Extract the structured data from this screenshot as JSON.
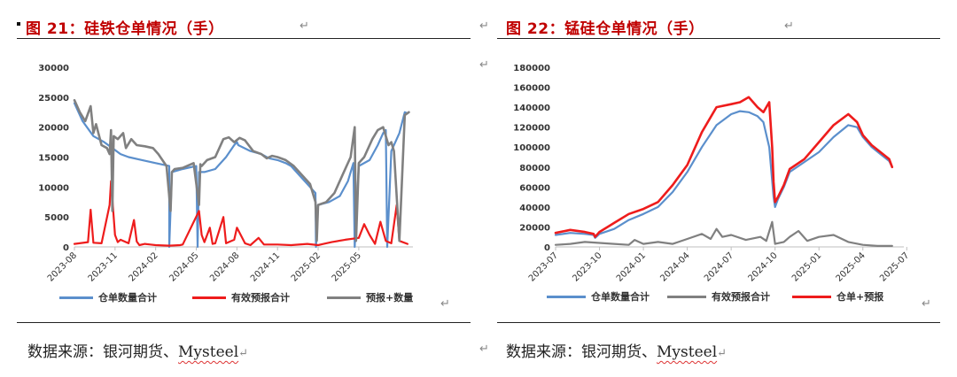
{
  "left": {
    "title": "图 21：硅铁仓单情况（手）",
    "source_prefix": "数据来源：银河期货、",
    "source_brand": "Mysteel",
    "chart_data": {
      "type": "line",
      "title": "",
      "xlabel": "",
      "ylabel": "",
      "ylim": [
        0,
        30000
      ],
      "y_ticks": [
        "0",
        "5000",
        "10000",
        "15000",
        "20000",
        "25000",
        "30000"
      ],
      "x_ticks": [
        "2023-08",
        "2023-11",
        "2024-02",
        "2024-05",
        "2024-08",
        "2024-11",
        "2025-02",
        "2025-05"
      ],
      "grid": false,
      "legend_position": "bottom",
      "series": [
        {
          "name": "仓单数量合计",
          "color": "#5b8fcc",
          "x": [
            0,
            0.3,
            0.7,
            1.1,
            1.4,
            1.7,
            2.0,
            2.5,
            3.0,
            3.5,
            3.5,
            3.6,
            4.0,
            4.5,
            4.55,
            4.6,
            4.8,
            5.2,
            5.6,
            5.9,
            6.0,
            6.05,
            6.5,
            6.9,
            7.1,
            7.2,
            7.5,
            7.8,
            8.0,
            8.3,
            8.6,
            8.9,
            8.92,
            9.0,
            9.4,
            9.8,
            10.1,
            10.3,
            10.35,
            10.5,
            10.9,
            11.2,
            11.4,
            11.5,
            11.55,
            11.7,
            12.0,
            12.2,
            12.3
          ],
          "values": [
            24000,
            21000,
            18500,
            17500,
            16500,
            15500,
            15000,
            14500,
            14000,
            13500,
            0,
            12500,
            13000,
            13500,
            0,
            12500,
            12500,
            13000,
            15000,
            17000,
            17500,
            17000,
            16000,
            15500,
            15000,
            14800,
            14500,
            14000,
            13500,
            12000,
            10500,
            9000,
            0,
            7000,
            7500,
            8500,
            11000,
            14000,
            0,
            13500,
            14500,
            17000,
            19000,
            19500,
            0,
            16000,
            19000,
            22500,
            22300
          ]
        },
        {
          "name": "有效预报合计",
          "color": "#ee1c1c",
          "x": [
            0,
            0.5,
            0.6,
            0.7,
            1.0,
            1.3,
            1.35,
            1.5,
            1.6,
            1.7,
            2.0,
            2.2,
            2.3,
            2.4,
            2.6,
            2.8,
            3.0,
            3.5,
            3.9,
            4.0,
            4.6,
            4.7,
            4.8,
            5.0,
            5.1,
            5.2,
            5.5,
            5.6,
            5.9,
            6.0,
            6.3,
            6.5,
            6.8,
            7.0,
            7.5,
            8.0,
            8.6,
            9.0,
            9.2,
            9.5,
            10.0,
            10.5,
            10.7,
            10.9,
            11.1,
            11.3,
            11.5,
            11.7,
            11.9,
            12.0,
            12.3
          ],
          "values": [
            500,
            800,
            6200,
            700,
            600,
            7000,
            11000,
            2000,
            800,
            1200,
            600,
            4500,
            900,
            300,
            500,
            400,
            300,
            200,
            300,
            400,
            6000,
            2000,
            800,
            3200,
            500,
            600,
            5000,
            600,
            1200,
            3200,
            600,
            300,
            1500,
            400,
            400,
            300,
            500,
            300,
            500,
            800,
            1200,
            1500,
            3800,
            2000,
            500,
            4200,
            1000,
            600,
            7000,
            1000,
            500
          ]
        },
        {
          "name": "预报+数量",
          "color": "#808080",
          "x": [
            0,
            0.2,
            0.4,
            0.6,
            0.7,
            0.8,
            1.0,
            1.2,
            1.3,
            1.35,
            1.4,
            1.45,
            1.6,
            1.8,
            1.9,
            2.1,
            2.3,
            2.6,
            2.9,
            3.1,
            3.4,
            3.55,
            3.6,
            3.7,
            4.0,
            4.4,
            4.6,
            4.65,
            4.7,
            4.9,
            5.2,
            5.5,
            5.7,
            5.9,
            6.1,
            6.3,
            6.6,
            6.9,
            7.1,
            7.3,
            7.5,
            7.8,
            8.1,
            8.4,
            8.7,
            8.9,
            8.95,
            9.0,
            9.3,
            9.6,
            9.9,
            10.2,
            10.35,
            10.4,
            10.5,
            10.7,
            11.0,
            11.2,
            11.4,
            11.6,
            11.7,
            11.8,
            12.0,
            12.2,
            12.35
          ],
          "values": [
            24500,
            22500,
            21000,
            23500,
            19000,
            20500,
            17000,
            16500,
            15500,
            19500,
            6000,
            18500,
            18000,
            19000,
            16500,
            18000,
            17000,
            16800,
            16500,
            15500,
            13500,
            6000,
            12500,
            13000,
            13200,
            14000,
            7000,
            13800,
            13500,
            14500,
            15000,
            18000,
            18300,
            17500,
            18200,
            17800,
            16000,
            15500,
            14800,
            15200,
            15000,
            14500,
            13500,
            12000,
            10500,
            7500,
            1000,
            7000,
            7500,
            9000,
            12000,
            15000,
            20000,
            1000,
            14000,
            15000,
            18000,
            19500,
            20000,
            17000,
            17500,
            16000,
            1000,
            22000,
            22500
          ]
        }
      ]
    }
  },
  "right": {
    "title": "图 22：锰硅仓单情况（手）",
    "source_prefix": "数据来源：银河期货、",
    "source_brand": "Mysteel",
    "chart_data": {
      "type": "line",
      "title": "",
      "xlabel": "",
      "ylabel": "",
      "ylim": [
        0,
        180000
      ],
      "y_ticks": [
        "0",
        "20000",
        "40000",
        "60000",
        "80000",
        "100000",
        "120000",
        "140000",
        "160000",
        "180000"
      ],
      "x_ticks": [
        "2023-07",
        "2023-10",
        "2024-01",
        "2024-04",
        "2024-07",
        "2024-10",
        "2025-01",
        "2025-04",
        "2025-07"
      ],
      "grid": false,
      "legend_position": "bottom",
      "series": [
        {
          "name": "仓单数量合计",
          "color": "#5b8fcc",
          "x": [
            0,
            0.5,
            1.0,
            1.3,
            1.35,
            1.5,
            2.0,
            2.5,
            3.0,
            3.5,
            4.0,
            4.5,
            5.0,
            5.5,
            6.0,
            6.3,
            6.6,
            6.9,
            7.1,
            7.3,
            7.45,
            7.5,
            7.6,
            7.8,
            8.0,
            8.5,
            9.0,
            9.5,
            10.0,
            10.3,
            10.5,
            10.8,
            11.1,
            11.4,
            11.5
          ],
          "values": [
            12000,
            14000,
            13000,
            12000,
            9000,
            13000,
            18000,
            27000,
            33000,
            40000,
            55000,
            75000,
            100000,
            122000,
            133000,
            136000,
            135000,
            131000,
            125000,
            100000,
            50000,
            40000,
            48000,
            60000,
            75000,
            85000,
            95000,
            110000,
            122000,
            120000,
            110000,
            100000,
            93000,
            86000,
            80000
          ]
        },
        {
          "name": "有效预报合计",
          "color": "#808080",
          "x": [
            0,
            0.5,
            1.0,
            1.5,
            2.0,
            2.5,
            2.7,
            3.0,
            3.5,
            4.0,
            4.5,
            5.0,
            5.3,
            5.5,
            5.7,
            6.0,
            6.5,
            7.0,
            7.2,
            7.4,
            7.5,
            7.8,
            8.0,
            8.3,
            8.6,
            9.0,
            9.5,
            10.0,
            10.5,
            11.0,
            11.5
          ],
          "values": [
            2000,
            3000,
            5000,
            4000,
            3000,
            2000,
            7000,
            3000,
            5000,
            3000,
            8000,
            13000,
            8000,
            18000,
            10000,
            12000,
            7000,
            10000,
            6000,
            25000,
            3000,
            5000,
            10000,
            16000,
            6000,
            10000,
            12000,
            5000,
            2000,
            1000,
            1000
          ]
        },
        {
          "name": "仓单+预报",
          "color": "#ee1c1c",
          "x": [
            0,
            0.5,
            1.0,
            1.3,
            1.35,
            1.5,
            2.0,
            2.5,
            3.0,
            3.5,
            4.0,
            4.5,
            5.0,
            5.5,
            6.0,
            6.3,
            6.6,
            6.9,
            7.1,
            7.3,
            7.4,
            7.45,
            7.5,
            7.6,
            7.8,
            8.0,
            8.5,
            9.0,
            9.5,
            10.0,
            10.3,
            10.5,
            10.8,
            11.1,
            11.4,
            11.5
          ],
          "values": [
            14000,
            17000,
            15000,
            13000,
            10000,
            15000,
            24000,
            33000,
            38000,
            45000,
            62000,
            82000,
            115000,
            140000,
            143000,
            145000,
            150000,
            140000,
            135000,
            145000,
            100000,
            65000,
            45000,
            50000,
            62000,
            78000,
            88000,
            105000,
            122000,
            133000,
            125000,
            112000,
            102000,
            95000,
            88000,
            80000
          ]
        }
      ]
    }
  }
}
